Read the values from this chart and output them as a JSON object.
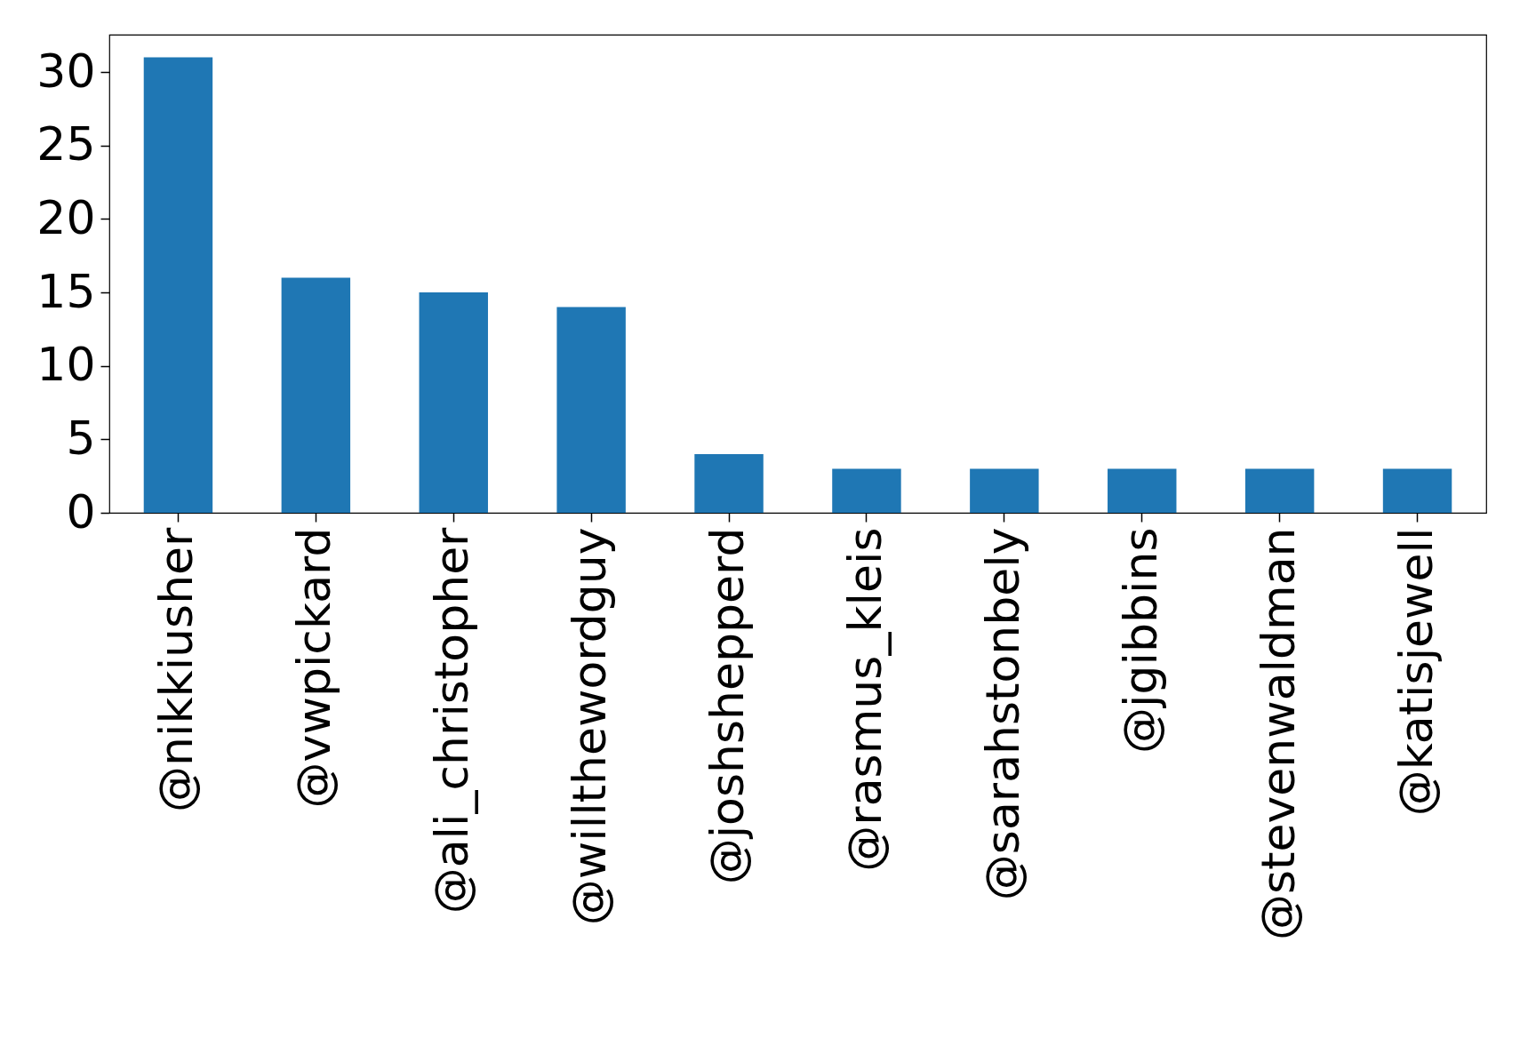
{
  "chart_data": {
    "type": "bar",
    "categories": [
      "@nikkiusher",
      "@vwpickard",
      "@ali_christopher",
      "@willthewordguy",
      "@joshshepperd",
      "@rasmus_kleis",
      "@sarahstonbely",
      "@jgibbins",
      "@stevenwaldman",
      "@katisjewell"
    ],
    "values": [
      31,
      16,
      15,
      14,
      4,
      3,
      3,
      3,
      3,
      3
    ],
    "color": "#1f77b4",
    "ylim": [
      0,
      32.55
    ],
    "yticks": [
      0,
      5,
      10,
      15,
      20,
      25,
      30
    ],
    "grid": false
  }
}
